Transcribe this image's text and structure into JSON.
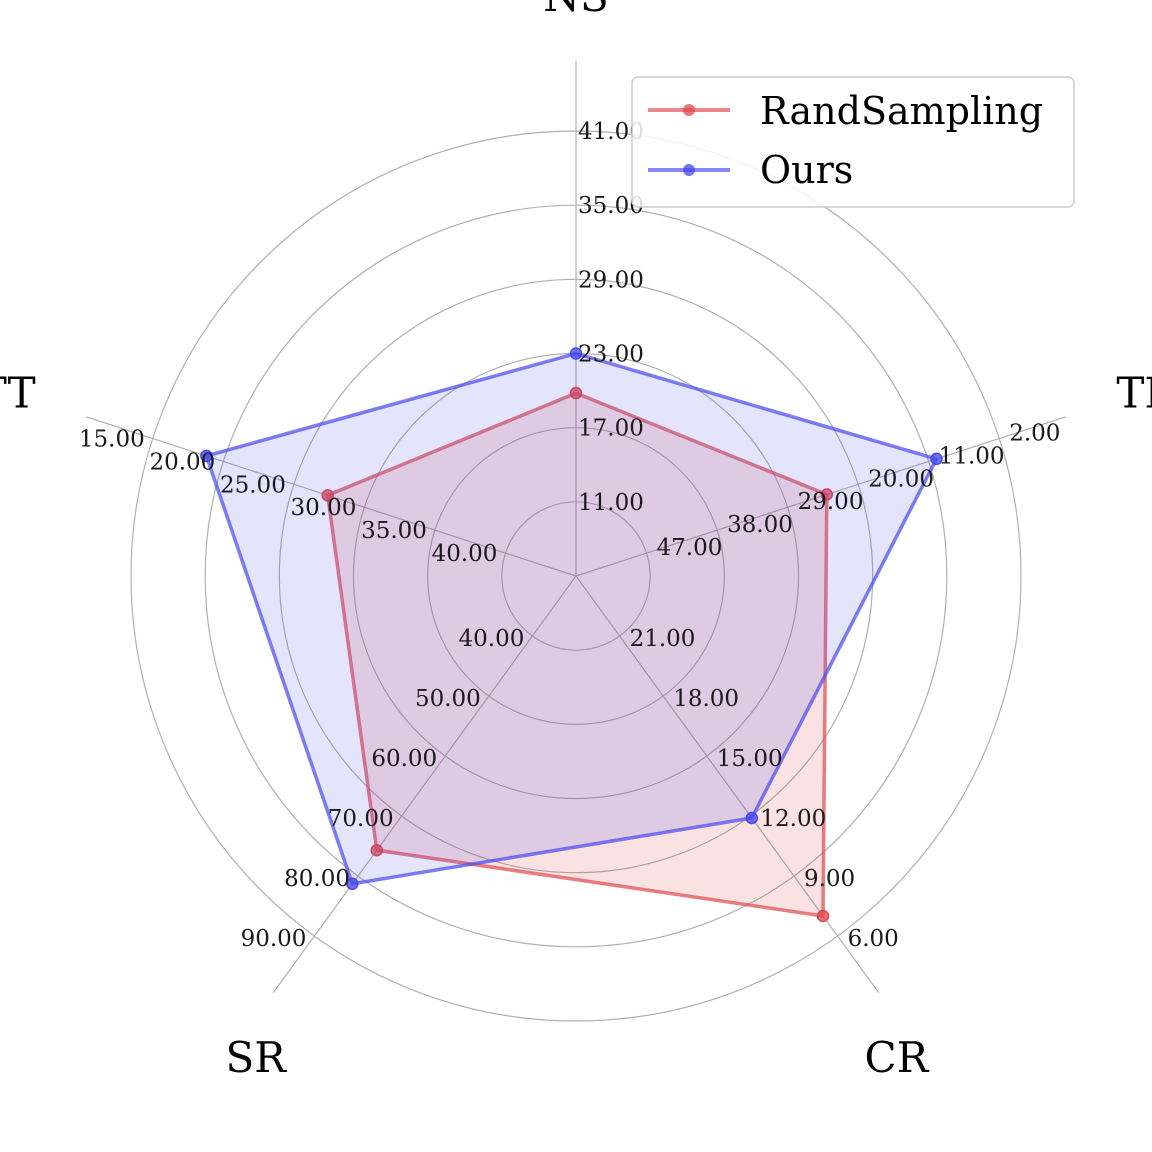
{
  "chart_data": {
    "type": "radar",
    "axes": [
      {
        "label": "NS",
        "ticks": [
          "11.00",
          "17.00",
          "23.00",
          "29.00",
          "35.00",
          "41.00"
        ],
        "range": [
          5,
          41
        ]
      },
      {
        "label": "TR",
        "ticks": [
          "47.00",
          "38.00",
          "29.00",
          "20.00",
          "11.00",
          "2.00"
        ],
        "range": [
          56,
          2
        ]
      },
      {
        "label": "CR",
        "ticks": [
          "21.00",
          "18.00",
          "15.00",
          "12.00",
          "9.00",
          "6.00"
        ],
        "range": [
          24,
          6
        ]
      },
      {
        "label": "SR",
        "ticks": [
          "40.00",
          "50.00",
          "60.00",
          "70.00",
          "80.00",
          "90.00"
        ],
        "range": [
          30,
          90
        ]
      },
      {
        "label": "ATT",
        "ticks": [
          "40.00",
          "35.00",
          "30.00",
          "25.00",
          "20.00",
          "15.00"
        ],
        "range": [
          45,
          15
        ]
      }
    ],
    "series": [
      {
        "name": "RandSampling",
        "color": "#e0474c",
        "values": [
          19.8,
          24.0,
          7.0,
          75.7,
          27.4
        ]
      },
      {
        "name": "Ours",
        "color": "#4747f0",
        "values": [
          23.0,
          10.0,
          11.9,
          81.3,
          18.8
        ]
      }
    ],
    "legend": "top-right",
    "grid": true
  }
}
